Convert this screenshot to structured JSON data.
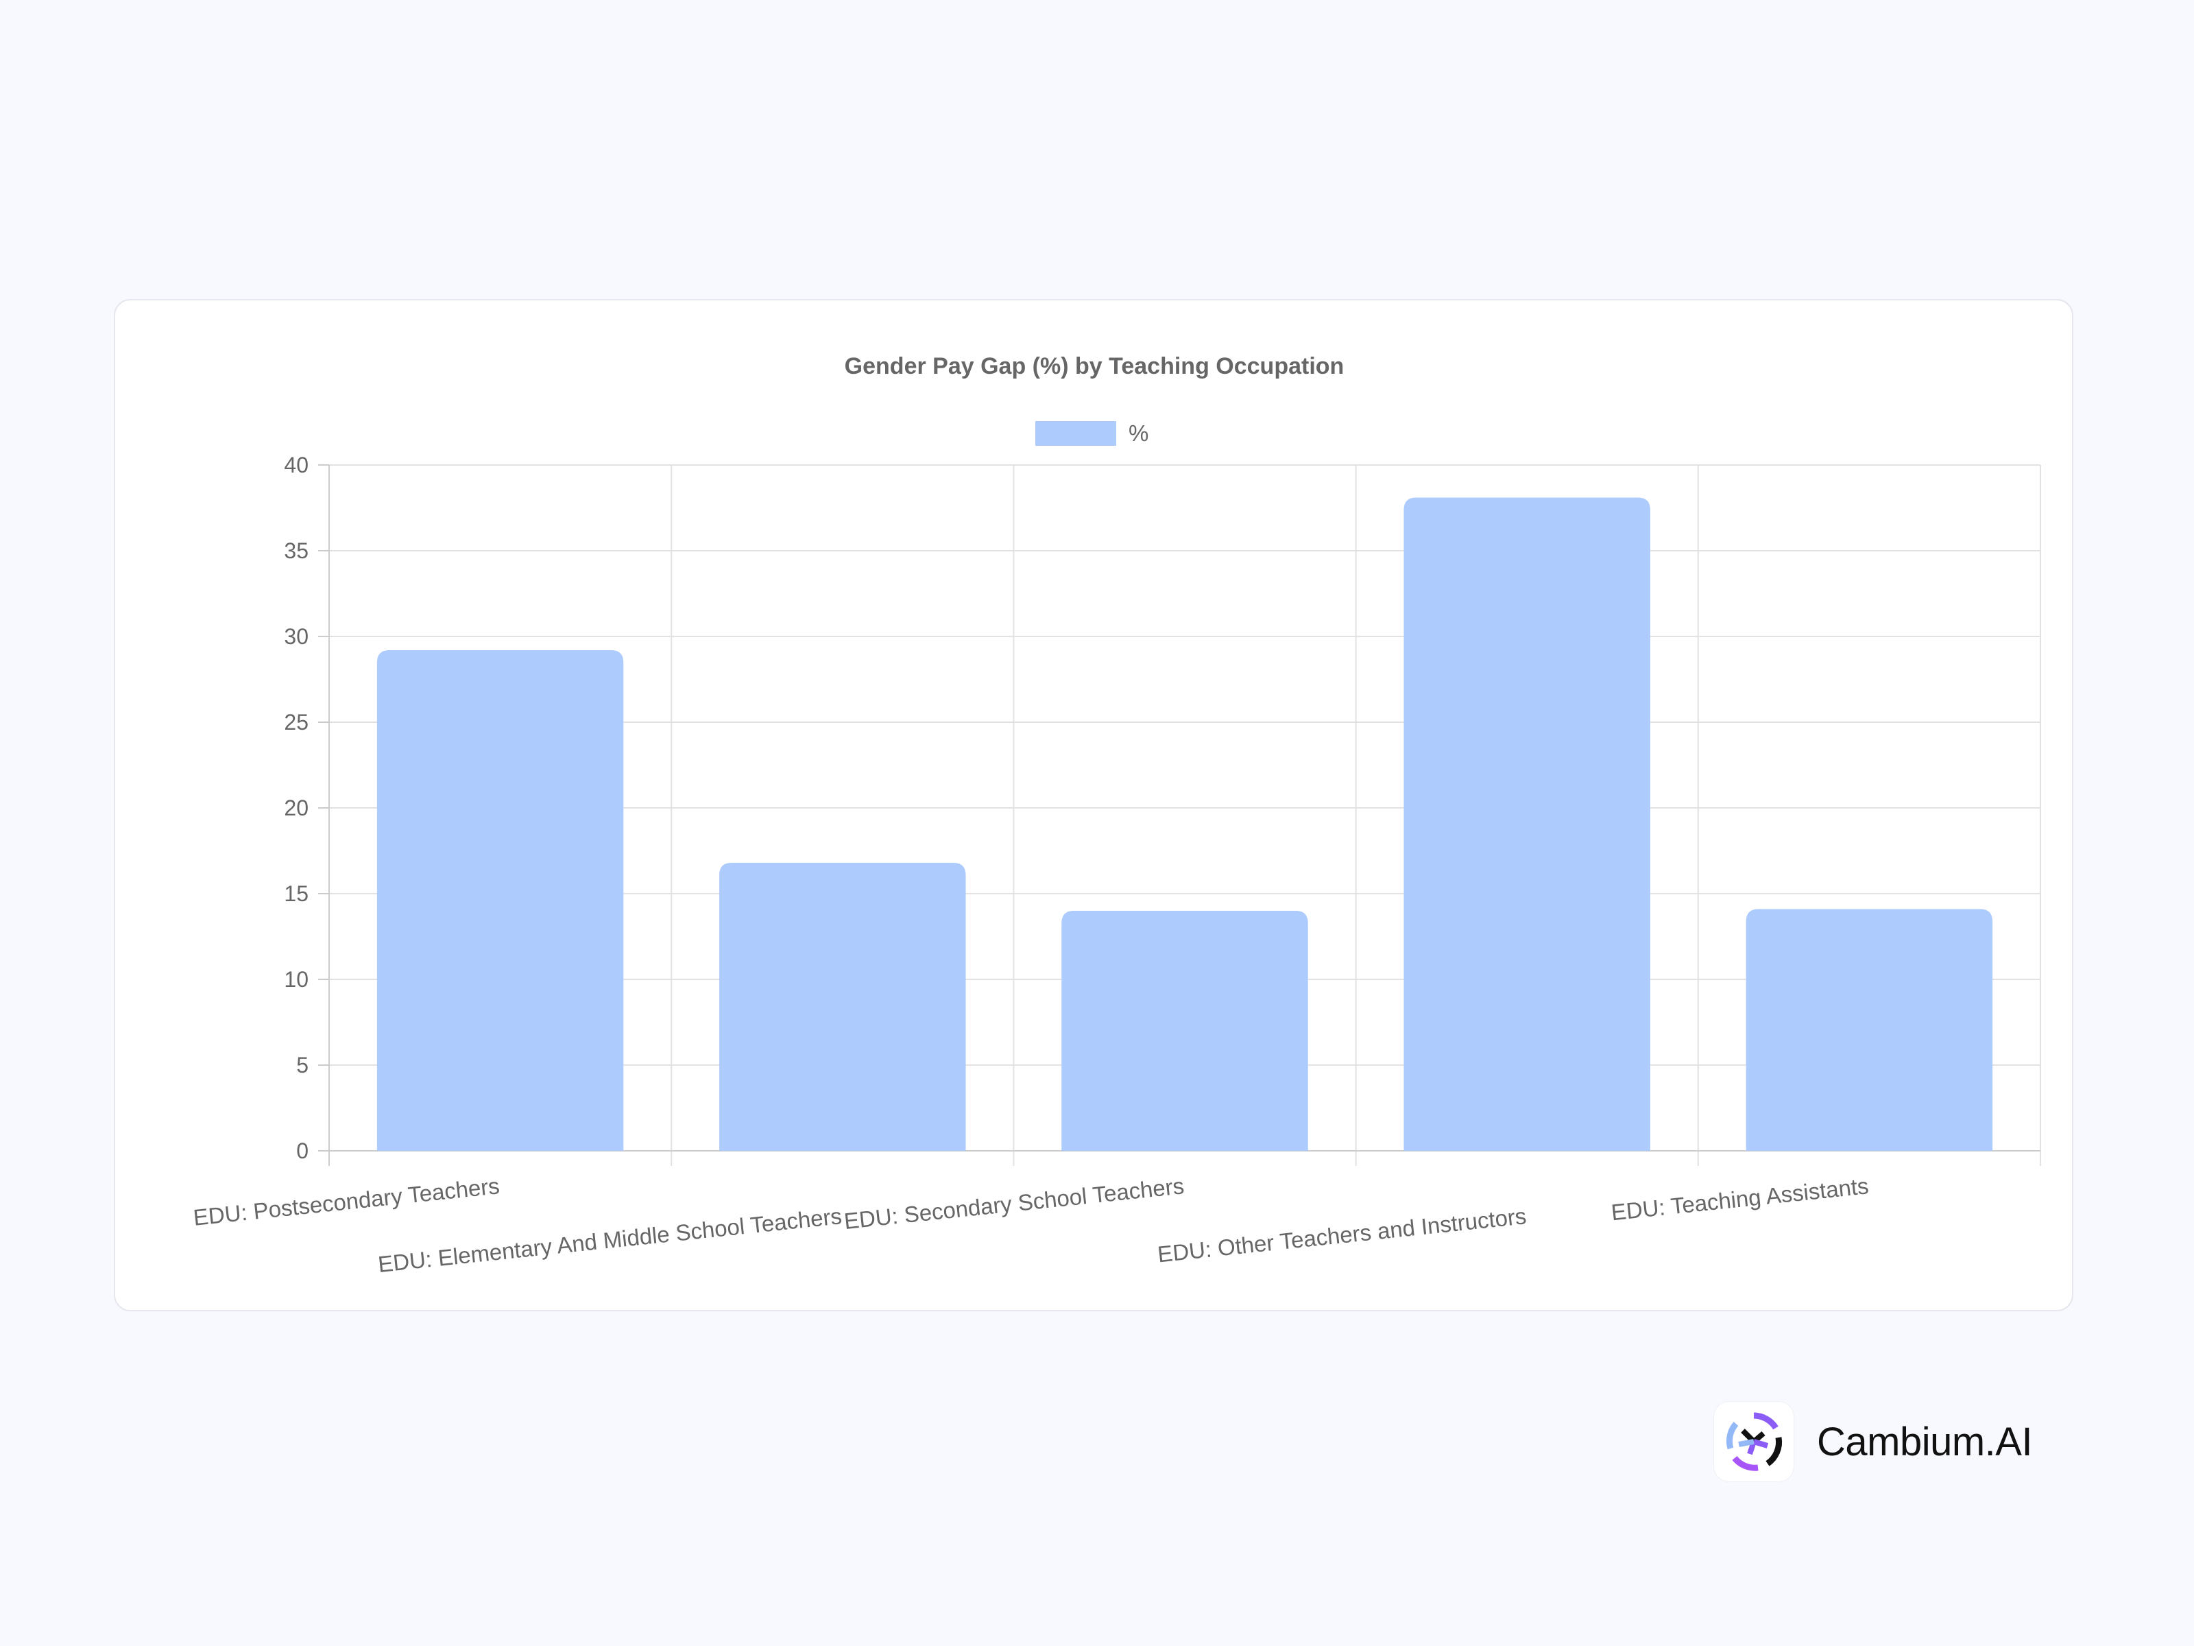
{
  "chart_data": {
    "type": "bar",
    "title": "Gender Pay Gap (%) by Teaching Occupation",
    "categories": [
      "EDU: Postsecondary Teachers",
      "EDU: Elementary And Middle School Teachers",
      "EDU: Secondary School Teachers",
      "EDU: Other Teachers and Instructors",
      "EDU: Teaching Assistants"
    ],
    "series": [
      {
        "name": "%",
        "values": [
          29.2,
          16.8,
          14.0,
          38.1,
          14.1
        ]
      }
    ],
    "xlabel": "",
    "ylabel": "",
    "ylim": [
      0,
      40
    ],
    "yticks": [
      0,
      5,
      10,
      15,
      20,
      25,
      30,
      35,
      40
    ],
    "grid": true,
    "legend_position": "top-center",
    "bar_color": "#adcbfc"
  },
  "brand": {
    "name": "Cambium.AI",
    "logo_icon": "cambium-logo-icon"
  }
}
